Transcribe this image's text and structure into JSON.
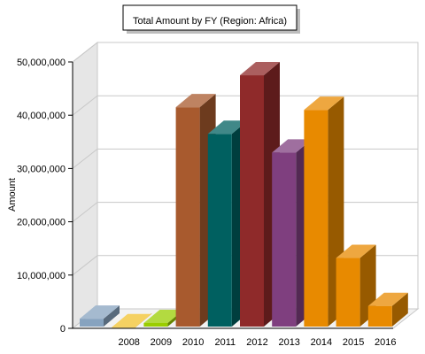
{
  "chart_data": {
    "type": "bar",
    "title": "Total Amount by FY (Region: Africa)",
    "xlabel": "",
    "ylabel": "Amount",
    "ylim": [
      0,
      50000000
    ],
    "grid": true,
    "categories": [
      "",
      "2008",
      "2009",
      "2010",
      "2011",
      "2012",
      "2013",
      "2014",
      "2015",
      "2016"
    ],
    "values": [
      1800000,
      200000,
      1000000,
      41500000,
      36500000,
      47500000,
      33000000,
      41000000,
      13200000,
      4200000
    ],
    "colors": [
      "#87a3bf",
      "#f2c12e",
      "#9acd00",
      "#a85a2e",
      "#006060",
      "#8f2a2a",
      "#7f3f7f",
      "#e88a00",
      "#e88a00",
      "#e88a00"
    ],
    "y_ticks": [
      "0",
      "10,000,000",
      "20,000,000",
      "30,000,000",
      "40,000,000",
      "50,000,000"
    ]
  }
}
